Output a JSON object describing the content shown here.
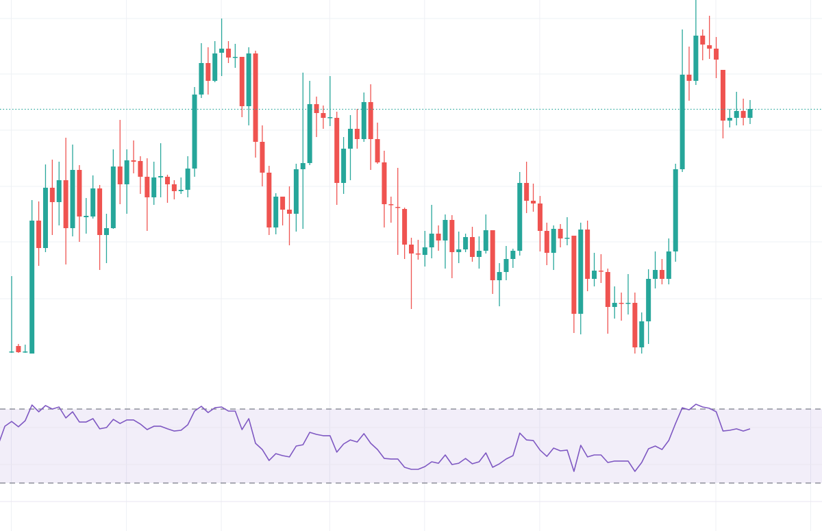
{
  "chart_data": {
    "type": "candlestick",
    "title": "",
    "xlabel": "",
    "ylabel": "",
    "grid": true,
    "colors": {
      "up": "#26a69a",
      "down": "#ef5350",
      "rsi_line": "#7e57c2",
      "rsi_band": "#7e57c2",
      "rsi_bounds": "#787b86",
      "grid": "#f0f3fa",
      "last_price_line": "#26a69a"
    },
    "price_ylim": [
      440,
      1000
    ],
    "price_gridlines": [
      973,
      892,
      810,
      728,
      647,
      564
    ],
    "time_gridlines": [
      1,
      18,
      32,
      48,
      62,
      79,
      105,
      119
    ],
    "candles_ohlc": [
      [
        486,
        597,
        485,
        487
      ],
      [
        495,
        498,
        485,
        486
      ],
      [
        486,
        497,
        485,
        487
      ],
      [
        484,
        708,
        484,
        678
      ],
      [
        678,
        706,
        612,
        638
      ],
      [
        638,
        760,
        632,
        726
      ],
      [
        726,
        767,
        657,
        705
      ],
      [
        705,
        764,
        671,
        737
      ],
      [
        737,
        799,
        614,
        667
      ],
      [
        667,
        789,
        655,
        752
      ],
      [
        752,
        759,
        647,
        684
      ],
      [
        683,
        711,
        659,
        685
      ],
      [
        684,
        744,
        681,
        725
      ],
      [
        725,
        730,
        606,
        657
      ],
      [
        657,
        688,
        616,
        667
      ],
      [
        667,
        782,
        666,
        757
      ],
      [
        757,
        825,
        702,
        731
      ],
      [
        731,
        782,
        688,
        766
      ],
      [
        766,
        795,
        747,
        764
      ],
      [
        765,
        772,
        717,
        742
      ],
      [
        742,
        769,
        663,
        712
      ],
      [
        712,
        764,
        701,
        741
      ],
      [
        741,
        791,
        712,
        743
      ],
      [
        742,
        745,
        704,
        731
      ],
      [
        731,
        737,
        709,
        721
      ],
      [
        721,
        741,
        717,
        723
      ],
      [
        723,
        772,
        712,
        754
      ],
      [
        754,
        873,
        742,
        862
      ],
      [
        862,
        937,
        857,
        908
      ],
      [
        908,
        931,
        862,
        882
      ],
      [
        882,
        940,
        880,
        922
      ],
      [
        923,
        973,
        889,
        929
      ],
      [
        929,
        940,
        908,
        916
      ],
      [
        916,
        936,
        901,
        917
      ],
      [
        917,
        917,
        829,
        845
      ],
      [
        845,
        931,
        817,
        922
      ],
      [
        922,
        926,
        770,
        793
      ],
      [
        793,
        817,
        728,
        748
      ],
      [
        748,
        758,
        657,
        668
      ],
      [
        668,
        718,
        658,
        713
      ],
      [
        713,
        713,
        671,
        694
      ],
      [
        694,
        728,
        642,
        688
      ],
      [
        688,
        761,
        662,
        753
      ],
      [
        753,
        894,
        666,
        762
      ],
      [
        762,
        882,
        759,
        848
      ],
      [
        848,
        859,
        800,
        835
      ],
      [
        835,
        846,
        812,
        828
      ],
      [
        828,
        889,
        816,
        829
      ],
      [
        828,
        837,
        701,
        733
      ],
      [
        733,
        800,
        717,
        783
      ],
      [
        783,
        832,
        737,
        812
      ],
      [
        812,
        841,
        783,
        797
      ],
      [
        797,
        865,
        793,
        851
      ],
      [
        851,
        877,
        752,
        797
      ],
      [
        797,
        821,
        761,
        763
      ],
      [
        763,
        780,
        668,
        702
      ],
      [
        702,
        713,
        675,
        701
      ],
      [
        698,
        755,
        628,
        697
      ],
      [
        695,
        697,
        622,
        643
      ],
      [
        643,
        653,
        549,
        630
      ],
      [
        630,
        650,
        621,
        629
      ],
      [
        628,
        663,
        611,
        639
      ],
      [
        639,
        701,
        623,
        659
      ],
      [
        659,
        671,
        634,
        649
      ],
      [
        649,
        687,
        608,
        679
      ],
      [
        679,
        686,
        594,
        632
      ],
      [
        632,
        662,
        616,
        636
      ],
      [
        636,
        659,
        632,
        654
      ],
      [
        654,
        669,
        618,
        625
      ],
      [
        625,
        655,
        608,
        634
      ],
      [
        634,
        687,
        630,
        664
      ],
      [
        664,
        664,
        571,
        591
      ],
      [
        591,
        616,
        553,
        603
      ],
      [
        603,
        641,
        591,
        622
      ],
      [
        622,
        637,
        609,
        634
      ],
      [
        634,
        749,
        627,
        733
      ],
      [
        733,
        764,
        689,
        707
      ],
      [
        707,
        732,
        691,
        703
      ],
      [
        703,
        714,
        633,
        663
      ],
      [
        663,
        675,
        613,
        631
      ],
      [
        631,
        671,
        606,
        666
      ],
      [
        666,
        673,
        639,
        652
      ],
      [
        652,
        683,
        642,
        653
      ],
      [
        656,
        656,
        514,
        542
      ],
      [
        542,
        675,
        512,
        665
      ],
      [
        665,
        678,
        575,
        593
      ],
      [
        593,
        631,
        582,
        605
      ],
      [
        605,
        629,
        587,
        604
      ],
      [
        603,
        608,
        513,
        552
      ],
      [
        552,
        582,
        535,
        558
      ],
      [
        558,
        573,
        532,
        557
      ],
      [
        557,
        600,
        541,
        558
      ],
      [
        558,
        573,
        484,
        493
      ],
      [
        493,
        544,
        484,
        531
      ],
      [
        531,
        607,
        498,
        593
      ],
      [
        593,
        633,
        579,
        606
      ],
      [
        606,
        622,
        585,
        593
      ],
      [
        593,
        652,
        585,
        633
      ],
      [
        633,
        761,
        618,
        753
      ],
      [
        753,
        957,
        749,
        891
      ],
      [
        891,
        932,
        853,
        882
      ],
      [
        882,
        1000,
        876,
        948
      ],
      [
        948,
        957,
        912,
        935
      ],
      [
        934,
        977,
        914,
        929
      ],
      [
        929,
        946,
        886,
        913
      ],
      [
        898,
        898,
        798,
        824
      ],
      [
        824,
        841,
        814,
        828
      ],
      [
        828,
        866,
        817,
        838
      ],
      [
        838,
        856,
        817,
        828
      ],
      [
        828,
        854,
        819,
        841
      ]
    ],
    "rsi": {
      "ylim": [
        0,
        100
      ],
      "upper_bound": 70,
      "lower_bound": 30,
      "gridlines": [
        60,
        40,
        20
      ],
      "start_offset": -2,
      "values": [
        50.4,
        60.7,
        63.3,
        60.4,
        63.7,
        72.2,
        68.5,
        71.9,
        70.0,
        71.1,
        65.2,
        68.5,
        63.0,
        63.0,
        64.8,
        59.3,
        60.0,
        64.4,
        62.2,
        64.1,
        64.1,
        61.9,
        58.9,
        60.7,
        60.7,
        59.3,
        58.1,
        58.5,
        61.5,
        68.9,
        71.5,
        68.1,
        70.7,
        71.1,
        68.9,
        68.9,
        58.9,
        64.8,
        51.5,
        48.1,
        42.2,
        45.9,
        44.8,
        44.1,
        50.0,
        50.7,
        57.4,
        56.3,
        55.6,
        55.6,
        46.7,
        51.1,
        53.3,
        52.2,
        56.7,
        51.5,
        48.1,
        43.3,
        43.0,
        43.0,
        38.5,
        37.4,
        37.4,
        38.9,
        41.5,
        40.7,
        45.2,
        40.0,
        40.7,
        43.3,
        40.4,
        41.5,
        46.3,
        38.5,
        40.4,
        43.0,
        44.8,
        57.0,
        53.3,
        53.0,
        47.8,
        44.4,
        48.9,
        47.4,
        47.8,
        36.3,
        50.4,
        44.1,
        45.2,
        45.2,
        41.1,
        41.9,
        41.9,
        41.9,
        36.3,
        41.1,
        48.5,
        50.0,
        48.1,
        53.0,
        62.2,
        70.7,
        69.6,
        72.6,
        71.1,
        70.4,
        68.5,
        58.1,
        58.5,
        59.3,
        58.1,
        59.3
      ]
    }
  }
}
